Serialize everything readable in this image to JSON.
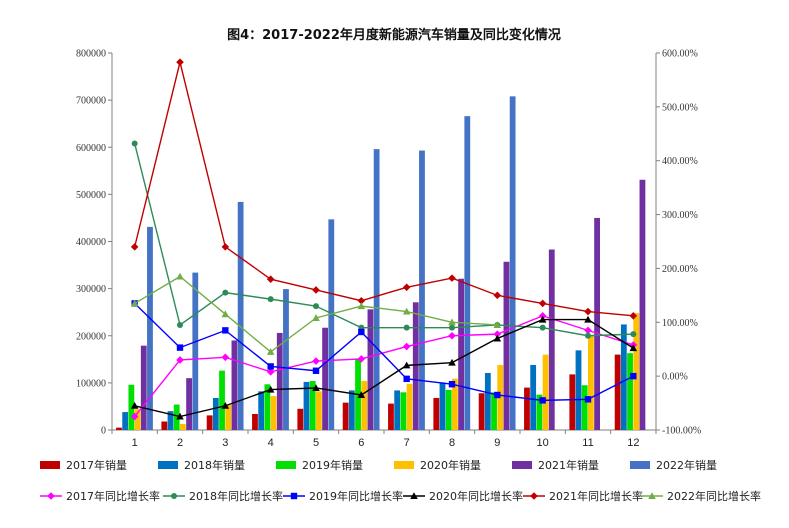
{
  "chart_data": {
    "type": "bar",
    "title": "图4：2017-2022年月度新能源汽车销量及同比变化情况",
    "categories": [
      "1",
      "2",
      "3",
      "4",
      "5",
      "6",
      "7",
      "8",
      "9",
      "10",
      "11",
      "12"
    ],
    "y_left": {
      "min": 0,
      "max": 800000,
      "ticks": [
        "0",
        "100000",
        "200000",
        "300000",
        "400000",
        "500000",
        "600000",
        "700000",
        "800000"
      ]
    },
    "y_right": {
      "min": -100,
      "max": 600,
      "ticks": [
        "-100.00%",
        "0.00%",
        "100.00%",
        "200.00%",
        "300.00%",
        "400.00%",
        "500.00%",
        "600.00%"
      ]
    },
    "bar_series": [
      {
        "name": "2017年销量",
        "color": "#c00000",
        "values": [
          5000,
          18000,
          31000,
          34000,
          45000,
          58000,
          56000,
          68000,
          78000,
          90000,
          118000,
          160000
        ]
      },
      {
        "name": "2018年销量",
        "color": "#0070c0",
        "values": [
          38000,
          40000,
          68000,
          82000,
          102000,
          84000,
          84000,
          101000,
          121000,
          138000,
          169000,
          224000
        ]
      },
      {
        "name": "2019年销量",
        "color": "#00e000",
        "values": [
          96000,
          54000,
          126000,
          97000,
          104000,
          152000,
          80000,
          85000,
          80000,
          75000,
          95000,
          163000
        ]
      },
      {
        "name": "2020年销量",
        "color": "#ffc000",
        "values": [
          44000,
          13000,
          53000,
          72000,
          82000,
          104000,
          98000,
          109000,
          138000,
          160000,
          200000,
          248000
        ]
      },
      {
        "name": "2021年销量",
        "color": "#7030a0",
        "values": [
          179000,
          110000,
          190000,
          206000,
          217000,
          256000,
          271000,
          321000,
          357000,
          383000,
          450000,
          531000
        ]
      },
      {
        "name": "2022年销量",
        "color": "#4472c4",
        "values": [
          431000,
          334000,
          484000,
          299000,
          447000,
          596000,
          593000,
          666000,
          708000,
          null,
          null,
          null
        ]
      }
    ],
    "line_series": [
      {
        "name": "2017年同比增长率",
        "color": "#ff00ff",
        "marker": "diamond",
        "values": [
          -75,
          30,
          35,
          8,
          28,
          32,
          55,
          75,
          78,
          112,
          85,
          58
        ]
      },
      {
        "name": "2018年同比增长率",
        "color": "#2e8b57",
        "marker": "circle",
        "values": [
          432,
          95,
          155,
          143,
          130,
          90,
          90,
          90,
          95,
          90,
          75,
          78
        ]
      },
      {
        "name": "2019年同比增长率",
        "color": "#0000ff",
        "marker": "square",
        "values": [
          135,
          53,
          85,
          18,
          10,
          82,
          -5,
          -15,
          -35,
          -45,
          -43,
          0
        ]
      },
      {
        "name": "2020年同比增长率",
        "color": "#000000",
        "marker": "triangle",
        "values": [
          -55,
          -75,
          -55,
          -25,
          -22,
          -35,
          20,
          25,
          70,
          105,
          105,
          52
        ]
      },
      {
        "name": "2021年同比增长率",
        "color": "#c00000",
        "marker": "diamond",
        "values": [
          240,
          583,
          240,
          180,
          160,
          140,
          165,
          182,
          150,
          135,
          120,
          112
        ]
      },
      {
        "name": "2022年同比增长率",
        "color": "#70ad47",
        "marker": "triangle",
        "values": [
          135,
          185,
          115,
          45,
          108,
          130,
          120,
          100,
          95,
          null,
          null,
          null
        ]
      }
    ],
    "legend_position": "bottom",
    "grid": false
  }
}
